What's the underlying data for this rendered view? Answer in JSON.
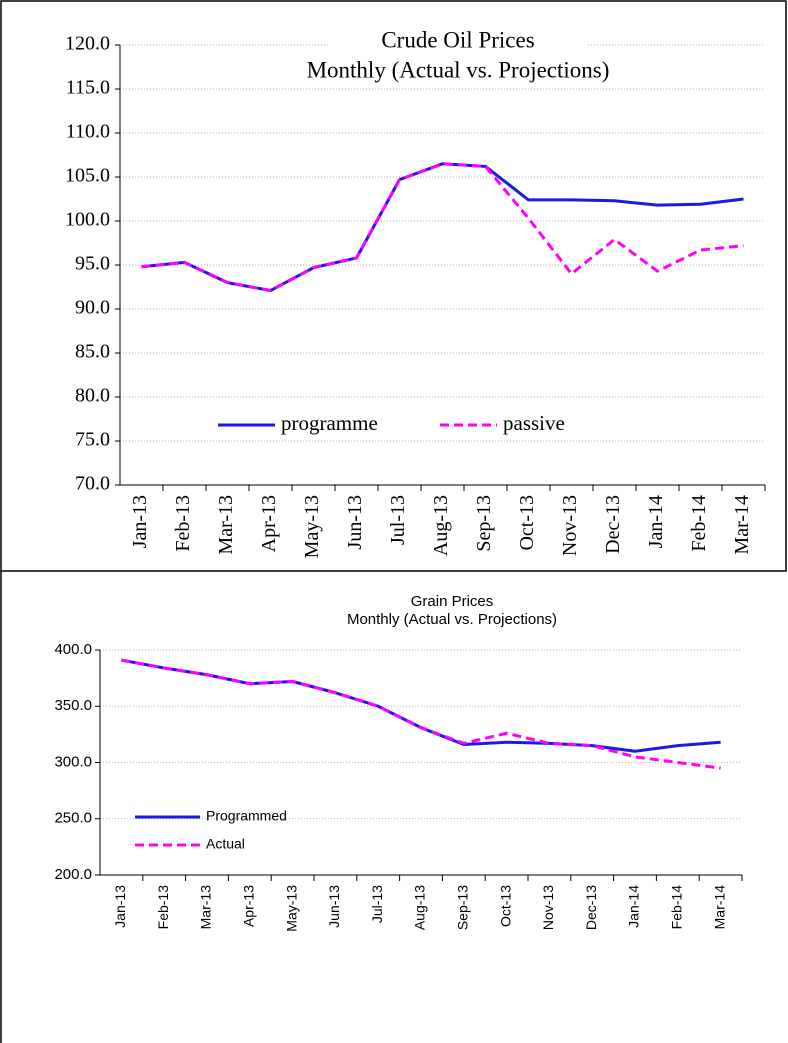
{
  "chart_data": [
    {
      "type": "line",
      "title": "Crude Oil Prices",
      "subtitle": "Monthly (Actual vs. Projections)",
      "categories": [
        "Jan-13",
        "Feb-13",
        "Mar-13",
        "Apr-13",
        "May-13",
        "Jun-13",
        "Jul-13",
        "Aug-13",
        "Sep-13",
        "Oct-13",
        "Nov-13",
        "Dec-13",
        "Jan-14",
        "Feb-14",
        "Mar-14"
      ],
      "series": [
        {
          "name": "programme",
          "color": "#1a1ae6",
          "dashed": false,
          "values": [
            94.8,
            95.3,
            93.0,
            92.1,
            94.7,
            95.8,
            104.7,
            106.5,
            106.2,
            102.4,
            102.4,
            102.3,
            101.8,
            101.9,
            102.5
          ]
        },
        {
          "name": "passive",
          "color": "#ff00ff",
          "dashed": true,
          "values": [
            94.8,
            95.3,
            93.0,
            92.1,
            94.7,
            95.8,
            104.7,
            106.5,
            106.2,
            100.3,
            94.0,
            97.9,
            94.3,
            96.7,
            97.2
          ]
        }
      ],
      "ylim": [
        70,
        120
      ],
      "yticks": [
        {
          "value": 70,
          "label": "70.0"
        },
        {
          "value": 75,
          "label": "75.0"
        },
        {
          "value": 80,
          "label": "80.0"
        },
        {
          "value": 85,
          "label": "85.0"
        },
        {
          "value": 90,
          "label": "90.0"
        },
        {
          "value": 95,
          "label": "95.0"
        },
        {
          "value": 100,
          "label": "100.0"
        },
        {
          "value": 105,
          "label": "105.0"
        },
        {
          "value": 110,
          "label": "110.0"
        },
        {
          "value": 115,
          "label": "115.0"
        },
        {
          "value": 120,
          "label": "120.0"
        }
      ],
      "grid": true,
      "legend": "bottom-center"
    },
    {
      "type": "line",
      "title": "Grain Prices",
      "subtitle": "Monthly (Actual vs. Projections)",
      "categories": [
        "Jan-13",
        "Feb-13",
        "Mar-13",
        "Apr-13",
        "May-13",
        "Jun-13",
        "Jul-13",
        "Aug-13",
        "Sep-13",
        "Oct-13",
        "Nov-13",
        "Dec-13",
        "Jan-14",
        "Feb-14",
        "Mar-14"
      ],
      "series": [
        {
          "name": "Programmed",
          "color": "#1a1ae6",
          "dashed": false,
          "values": [
            391,
            384,
            378,
            370,
            372,
            362,
            350,
            331,
            316,
            318,
            317,
            315,
            310,
            315,
            318
          ]
        },
        {
          "name": "Actual",
          "color": "#ff00ff",
          "dashed": true,
          "values": [
            391,
            384,
            378,
            370,
            372,
            362,
            350,
            331,
            317,
            326,
            317,
            315,
            305,
            300,
            295
          ]
        }
      ],
      "ylim": [
        200,
        400
      ],
      "yticks": [
        {
          "value": 200,
          "label": "200.0"
        },
        {
          "value": 250,
          "label": "250.0"
        },
        {
          "value": 300,
          "label": "300.0"
        },
        {
          "value": 350,
          "label": "350.0"
        },
        {
          "value": 400,
          "label": "400.0"
        }
      ],
      "grid": true,
      "legend": "lower-left"
    }
  ]
}
